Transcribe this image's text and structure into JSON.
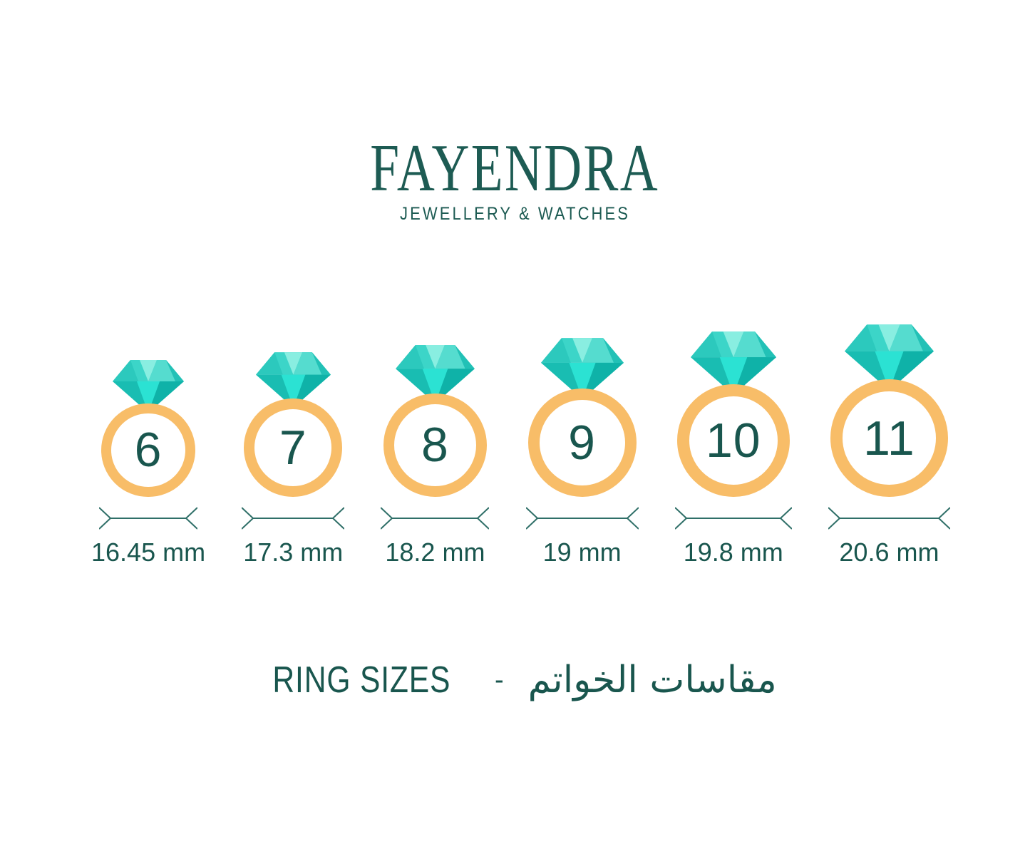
{
  "brand": {
    "name": "FAYENDRA",
    "tagline": "JEWELLERY & WATCHES"
  },
  "rings": [
    {
      "size": "6",
      "diameter_label": "16.45 mm",
      "diameter_mm": 16.45
    },
    {
      "size": "7",
      "diameter_label": "17.3 mm",
      "diameter_mm": 17.3
    },
    {
      "size": "8",
      "diameter_label": "18.2 mm",
      "diameter_mm": 18.2
    },
    {
      "size": "9",
      "diameter_label": "19 mm",
      "diameter_mm": 19
    },
    {
      "size": "10",
      "diameter_label": "19.8 mm",
      "diameter_mm": 19.8
    },
    {
      "size": "11",
      "diameter_label": "20.6 mm",
      "diameter_mm": 20.6
    }
  ],
  "footer": {
    "title_en": "RING SIZES",
    "separator": "-",
    "title_ar": "مقاسات الخواتم"
  },
  "colors": {
    "text_teal": "#19564E",
    "logo_teal": "#1D5B53",
    "band_gold": "#F8BD68",
    "arrow_teal": "#2F6F68",
    "diamond": {
      "base": "#3CD5C8",
      "facet_left": "#2CC9BD",
      "facet_center_light": "#89EEE1",
      "facet_right_light": "#55DCCF",
      "facet_right_dark": "#22C1B6",
      "pavilion_base": "#19BDB2",
      "pavilion_right": "#0FB2A8",
      "pavilion_center": "#2BE2D3"
    }
  }
}
